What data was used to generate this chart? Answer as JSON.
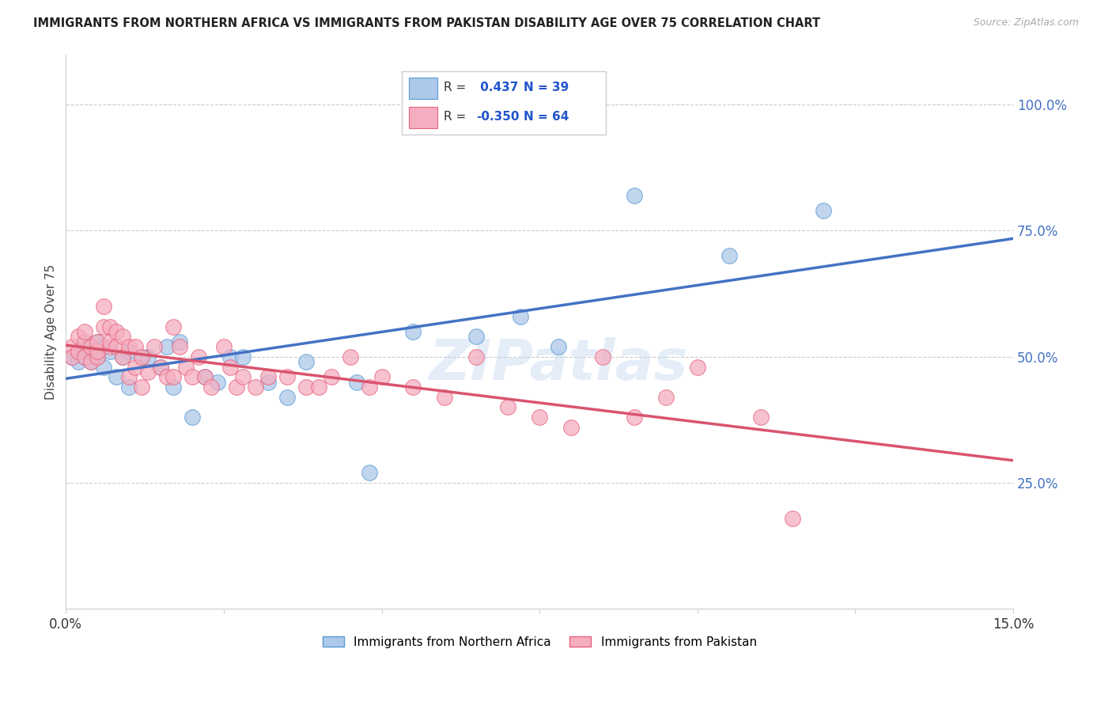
{
  "title": "IMMIGRANTS FROM NORTHERN AFRICA VS IMMIGRANTS FROM PAKISTAN DISABILITY AGE OVER 75 CORRELATION CHART",
  "source": "Source: ZipAtlas.com",
  "ylabel": "Disability Age Over 75",
  "xlim": [
    0.0,
    0.15
  ],
  "ylim": [
    0.0,
    1.1
  ],
  "yticks_right": [
    0.25,
    0.5,
    0.75,
    1.0
  ],
  "ytick_right_labels": [
    "25.0%",
    "50.0%",
    "75.0%",
    "100.0%"
  ],
  "series1_label": "Immigrants from Northern Africa",
  "series2_label": "Immigrants from Pakistan",
  "series1_color": "#adc8e8",
  "series2_color": "#f5aec0",
  "series1_edge_color": "#5b9bd5",
  "series2_edge_color": "#e8637c",
  "series1_line_color": "#4472c4",
  "series2_line_color": "#d9546e",
  "series1_R": 0.437,
  "series1_N": 39,
  "series2_R": -0.35,
  "series2_N": 64,
  "legend_R_color": "#2255cc",
  "background_color": "#ffffff",
  "grid_color": "#cccccc",
  "watermark": "ZIPatlas",
  "series1_x": [
    0.001,
    0.002,
    0.002,
    0.003,
    0.003,
    0.004,
    0.004,
    0.005,
    0.005,
    0.006,
    0.006,
    0.007,
    0.008,
    0.009,
    0.01,
    0.01,
    0.012,
    0.013,
    0.015,
    0.016,
    0.017,
    0.018,
    0.02,
    0.022,
    0.024,
    0.026,
    0.028,
    0.032,
    0.035,
    0.038,
    0.046,
    0.048,
    0.055,
    0.065,
    0.072,
    0.078,
    0.09,
    0.105,
    0.12
  ],
  "series1_y": [
    0.5,
    0.49,
    0.51,
    0.5,
    0.52,
    0.49,
    0.51,
    0.5,
    0.53,
    0.48,
    0.52,
    0.51,
    0.46,
    0.5,
    0.51,
    0.44,
    0.5,
    0.5,
    0.48,
    0.52,
    0.44,
    0.53,
    0.38,
    0.46,
    0.45,
    0.5,
    0.5,
    0.45,
    0.42,
    0.49,
    0.45,
    0.27,
    0.55,
    0.54,
    0.58,
    0.52,
    0.82,
    0.7,
    0.79
  ],
  "series2_x": [
    0.001,
    0.001,
    0.002,
    0.002,
    0.003,
    0.003,
    0.003,
    0.004,
    0.004,
    0.005,
    0.005,
    0.005,
    0.006,
    0.006,
    0.007,
    0.007,
    0.007,
    0.008,
    0.008,
    0.009,
    0.009,
    0.01,
    0.01,
    0.011,
    0.011,
    0.012,
    0.012,
    0.013,
    0.014,
    0.015,
    0.016,
    0.017,
    0.017,
    0.018,
    0.019,
    0.02,
    0.021,
    0.022,
    0.023,
    0.025,
    0.026,
    0.027,
    0.028,
    0.03,
    0.032,
    0.035,
    0.038,
    0.04,
    0.042,
    0.045,
    0.048,
    0.05,
    0.055,
    0.06,
    0.065,
    0.07,
    0.075,
    0.08,
    0.085,
    0.09,
    0.095,
    0.1,
    0.11,
    0.115
  ],
  "series2_y": [
    0.52,
    0.5,
    0.51,
    0.54,
    0.53,
    0.5,
    0.55,
    0.49,
    0.52,
    0.5,
    0.51,
    0.53,
    0.56,
    0.6,
    0.52,
    0.53,
    0.56,
    0.52,
    0.55,
    0.5,
    0.54,
    0.46,
    0.52,
    0.48,
    0.52,
    0.44,
    0.5,
    0.47,
    0.52,
    0.48,
    0.46,
    0.46,
    0.56,
    0.52,
    0.48,
    0.46,
    0.5,
    0.46,
    0.44,
    0.52,
    0.48,
    0.44,
    0.46,
    0.44,
    0.46,
    0.46,
    0.44,
    0.44,
    0.46,
    0.5,
    0.44,
    0.46,
    0.44,
    0.42,
    0.5,
    0.4,
    0.38,
    0.36,
    0.5,
    0.38,
    0.42,
    0.48,
    0.38,
    0.18
  ]
}
